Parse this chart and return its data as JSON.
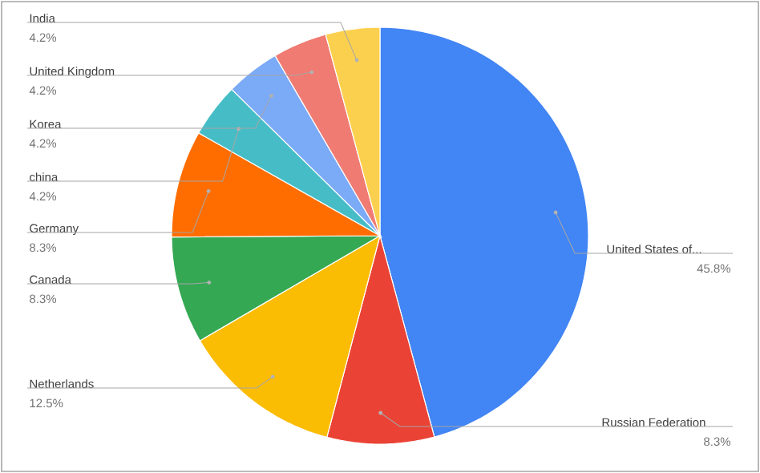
{
  "chart_data": {
    "type": "pie",
    "categories": [
      "United States of...",
      "Russian Federation",
      "Netherlands",
      "Canada",
      "Germany",
      "china",
      "Korea",
      "United Kingdom",
      "India"
    ],
    "values": [
      45.8,
      8.3,
      12.5,
      8.3,
      8.3,
      4.2,
      4.2,
      4.2,
      4.2
    ],
    "value_labels": [
      "45.8%",
      "8.3%",
      "12.5%",
      "8.3%",
      "8.3%",
      "4.2%",
      "4.2%",
      "4.2%",
      "4.2%"
    ],
    "colors": [
      "#4285f4",
      "#ea4335",
      "#fbbc04",
      "#34a853",
      "#ff6d01",
      "#46bdc6",
      "#7baaf7",
      "#f07b72",
      "#fcd04f"
    ]
  }
}
